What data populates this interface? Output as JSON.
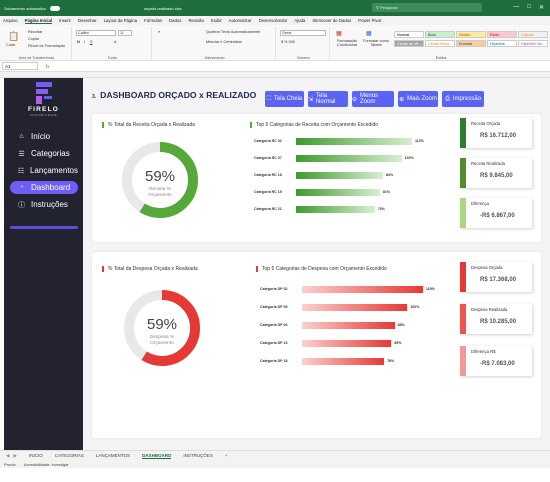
{
  "window": {
    "autosave_label": "Salvamento automático",
    "file_name": "orçado-realizado.xlsx",
    "search_placeholder": "Pesquisar"
  },
  "menu": [
    "Arquivo",
    "Página Inicial",
    "Inserir",
    "Desenhar",
    "Layout da Página",
    "Fórmulas",
    "Dados",
    "Revisão",
    "Exibir",
    "Automatizar",
    "Desenvolvedor",
    "Ajuda",
    "Stimsoner de Dados",
    "Power Pivot"
  ],
  "ribbon": {
    "clipboard": {
      "paste": "Colar",
      "cut": "Recortar",
      "copy": "Copiar",
      "format_painter": "Pincel de Formatação",
      "label": "Área de Transferência"
    },
    "font": {
      "name": "Calibri",
      "size": "11",
      "label": "Fonte"
    },
    "alignment": {
      "wrap": "Quebrar Texto Automaticamente",
      "merge": "Mesclar e Centralizar",
      "label": "Alinhamento"
    },
    "number": {
      "format": "Geral",
      "label": "Número"
    },
    "styles": {
      "conditional": "Formatação Condicional",
      "table": "Formatar como Tabela",
      "label": "Estilos",
      "cells": [
        {
          "name": "Normal",
          "bg": "#ffffff",
          "fg": "#000000"
        },
        {
          "name": "Bom",
          "bg": "#c6efce",
          "fg": "#006100"
        },
        {
          "name": "Neutro",
          "bg": "#ffeb9c",
          "fg": "#9c5700"
        },
        {
          "name": "Ruim",
          "bg": "#ffc7ce",
          "fg": "#9c0006"
        },
        {
          "name": "Cálculo",
          "bg": "#f2f2f2",
          "fg": "#fa7d00"
        },
        {
          "name": "Célula de Ve...",
          "bg": "#a5a5a5",
          "fg": "#ffffff"
        },
        {
          "name": "Célula Vincu...",
          "bg": "#ffffff",
          "fg": "#fa7d00"
        },
        {
          "name": "Entrada",
          "bg": "#ffcc99",
          "fg": "#3f3f76"
        },
        {
          "name": "Hiperlink",
          "bg": "#ffffff",
          "fg": "#0563c1"
        },
        {
          "name": "Hiperlink Vis...",
          "bg": "#ffffff",
          "fg": "#954f72"
        }
      ]
    }
  },
  "formula": {
    "cell_ref": "A1",
    "fx": "fx"
  },
  "sidebar": {
    "brand": "FIRELO",
    "brand_sub": "CONTABILIDADE",
    "items": [
      {
        "label": "Início",
        "icon": "home-icon"
      },
      {
        "label": "Categorias",
        "icon": "list-icon"
      },
      {
        "label": "Lançamentos",
        "icon": "cart-icon"
      },
      {
        "label": "Dashboard",
        "icon": "dashboard-icon",
        "active": true
      },
      {
        "label": "Instruções",
        "icon": "info-icon"
      }
    ]
  },
  "header": {
    "number": "3.",
    "title": "DASHBOARD ORÇADO x REALIZADO",
    "buttons": [
      {
        "label": "Tela Cheia",
        "icon": "fullscreen-icon"
      },
      {
        "label": "Tela Normal",
        "icon": "normal-screen-icon"
      },
      {
        "label": "Menos Zoom",
        "icon": "zoom-out-icon"
      },
      {
        "label": "Mais Zoom",
        "icon": "zoom-in-icon"
      },
      {
        "label": "Impressão",
        "icon": "print-icon"
      }
    ]
  },
  "receita": {
    "gauge_title": "% Total da Receita Orçada x Realizada",
    "gauge_value": "59%",
    "gauge_fraction": 0.59,
    "gauge_caption_1": "Receita %",
    "gauge_caption_2": "Orçamento",
    "top_title": "Top 5 Categorias de Receita com Orçamento Excedido",
    "accent": "#57a83a",
    "chart_data": {
      "type": "bar",
      "categories": [
        "Categoria RC 02",
        "Categoria RC 07",
        "Categoria RC 18",
        "Categoria RC 15",
        "Categoria RC 21"
      ],
      "values": [
        112,
        102,
        84,
        81,
        76
      ],
      "labels": [
        "112%",
        "102%",
        "84%",
        "81%",
        "76%"
      ]
    },
    "kpis": [
      {
        "label": "Receita Orçada",
        "value": "R$ 16.712,00",
        "color": "#2e7d32"
      },
      {
        "label": "Receita Realizada",
        "value": "R$ 9.845,00",
        "color": "#558b2f"
      },
      {
        "label": "Diferença",
        "value": "-R$ 6.867,00",
        "color": "#aed581"
      }
    ]
  },
  "despesa": {
    "gauge_title": "% Total da Despesa Orçada x Realizada",
    "gauge_value": "59%",
    "gauge_fraction": 0.59,
    "gauge_caption_1": "Despesa %",
    "gauge_caption_2": "Orçamento",
    "top_title": "Top 5 Categorias de Despesa com Orçamento Excedido",
    "accent": "#e53935",
    "chart_data": {
      "type": "bar",
      "categories": [
        "Categoria DP 02",
        "Categoria DP 05",
        "Categoria DP 06",
        "Categoria DP 13",
        "Categoria DP 18"
      ],
      "values": [
        115,
        100,
        88,
        85,
        78
      ],
      "labels": [
        "115%",
        "100%",
        "88%",
        "85%",
        "78%"
      ]
    },
    "kpis": [
      {
        "label": "Despesa Orçada",
        "value": "R$ 17.368,00",
        "color": "#e53935"
      },
      {
        "label": "Despesa Realizada",
        "value": "R$ 10.285,00",
        "color": "#ef5350"
      },
      {
        "label": "Diferença R$",
        "value": "-R$ 7.083,00",
        "color": "#ef9a9a"
      }
    ]
  },
  "sheets": [
    "INICIO",
    "CATEGORIAS",
    "LANÇAMENTOS",
    "DASHBOARD",
    "INSTRUÇÕES"
  ],
  "active_sheet": "DASHBOARD",
  "status": {
    "ready": "Pronto",
    "accessibility": "Acessibilidade: investigar"
  }
}
